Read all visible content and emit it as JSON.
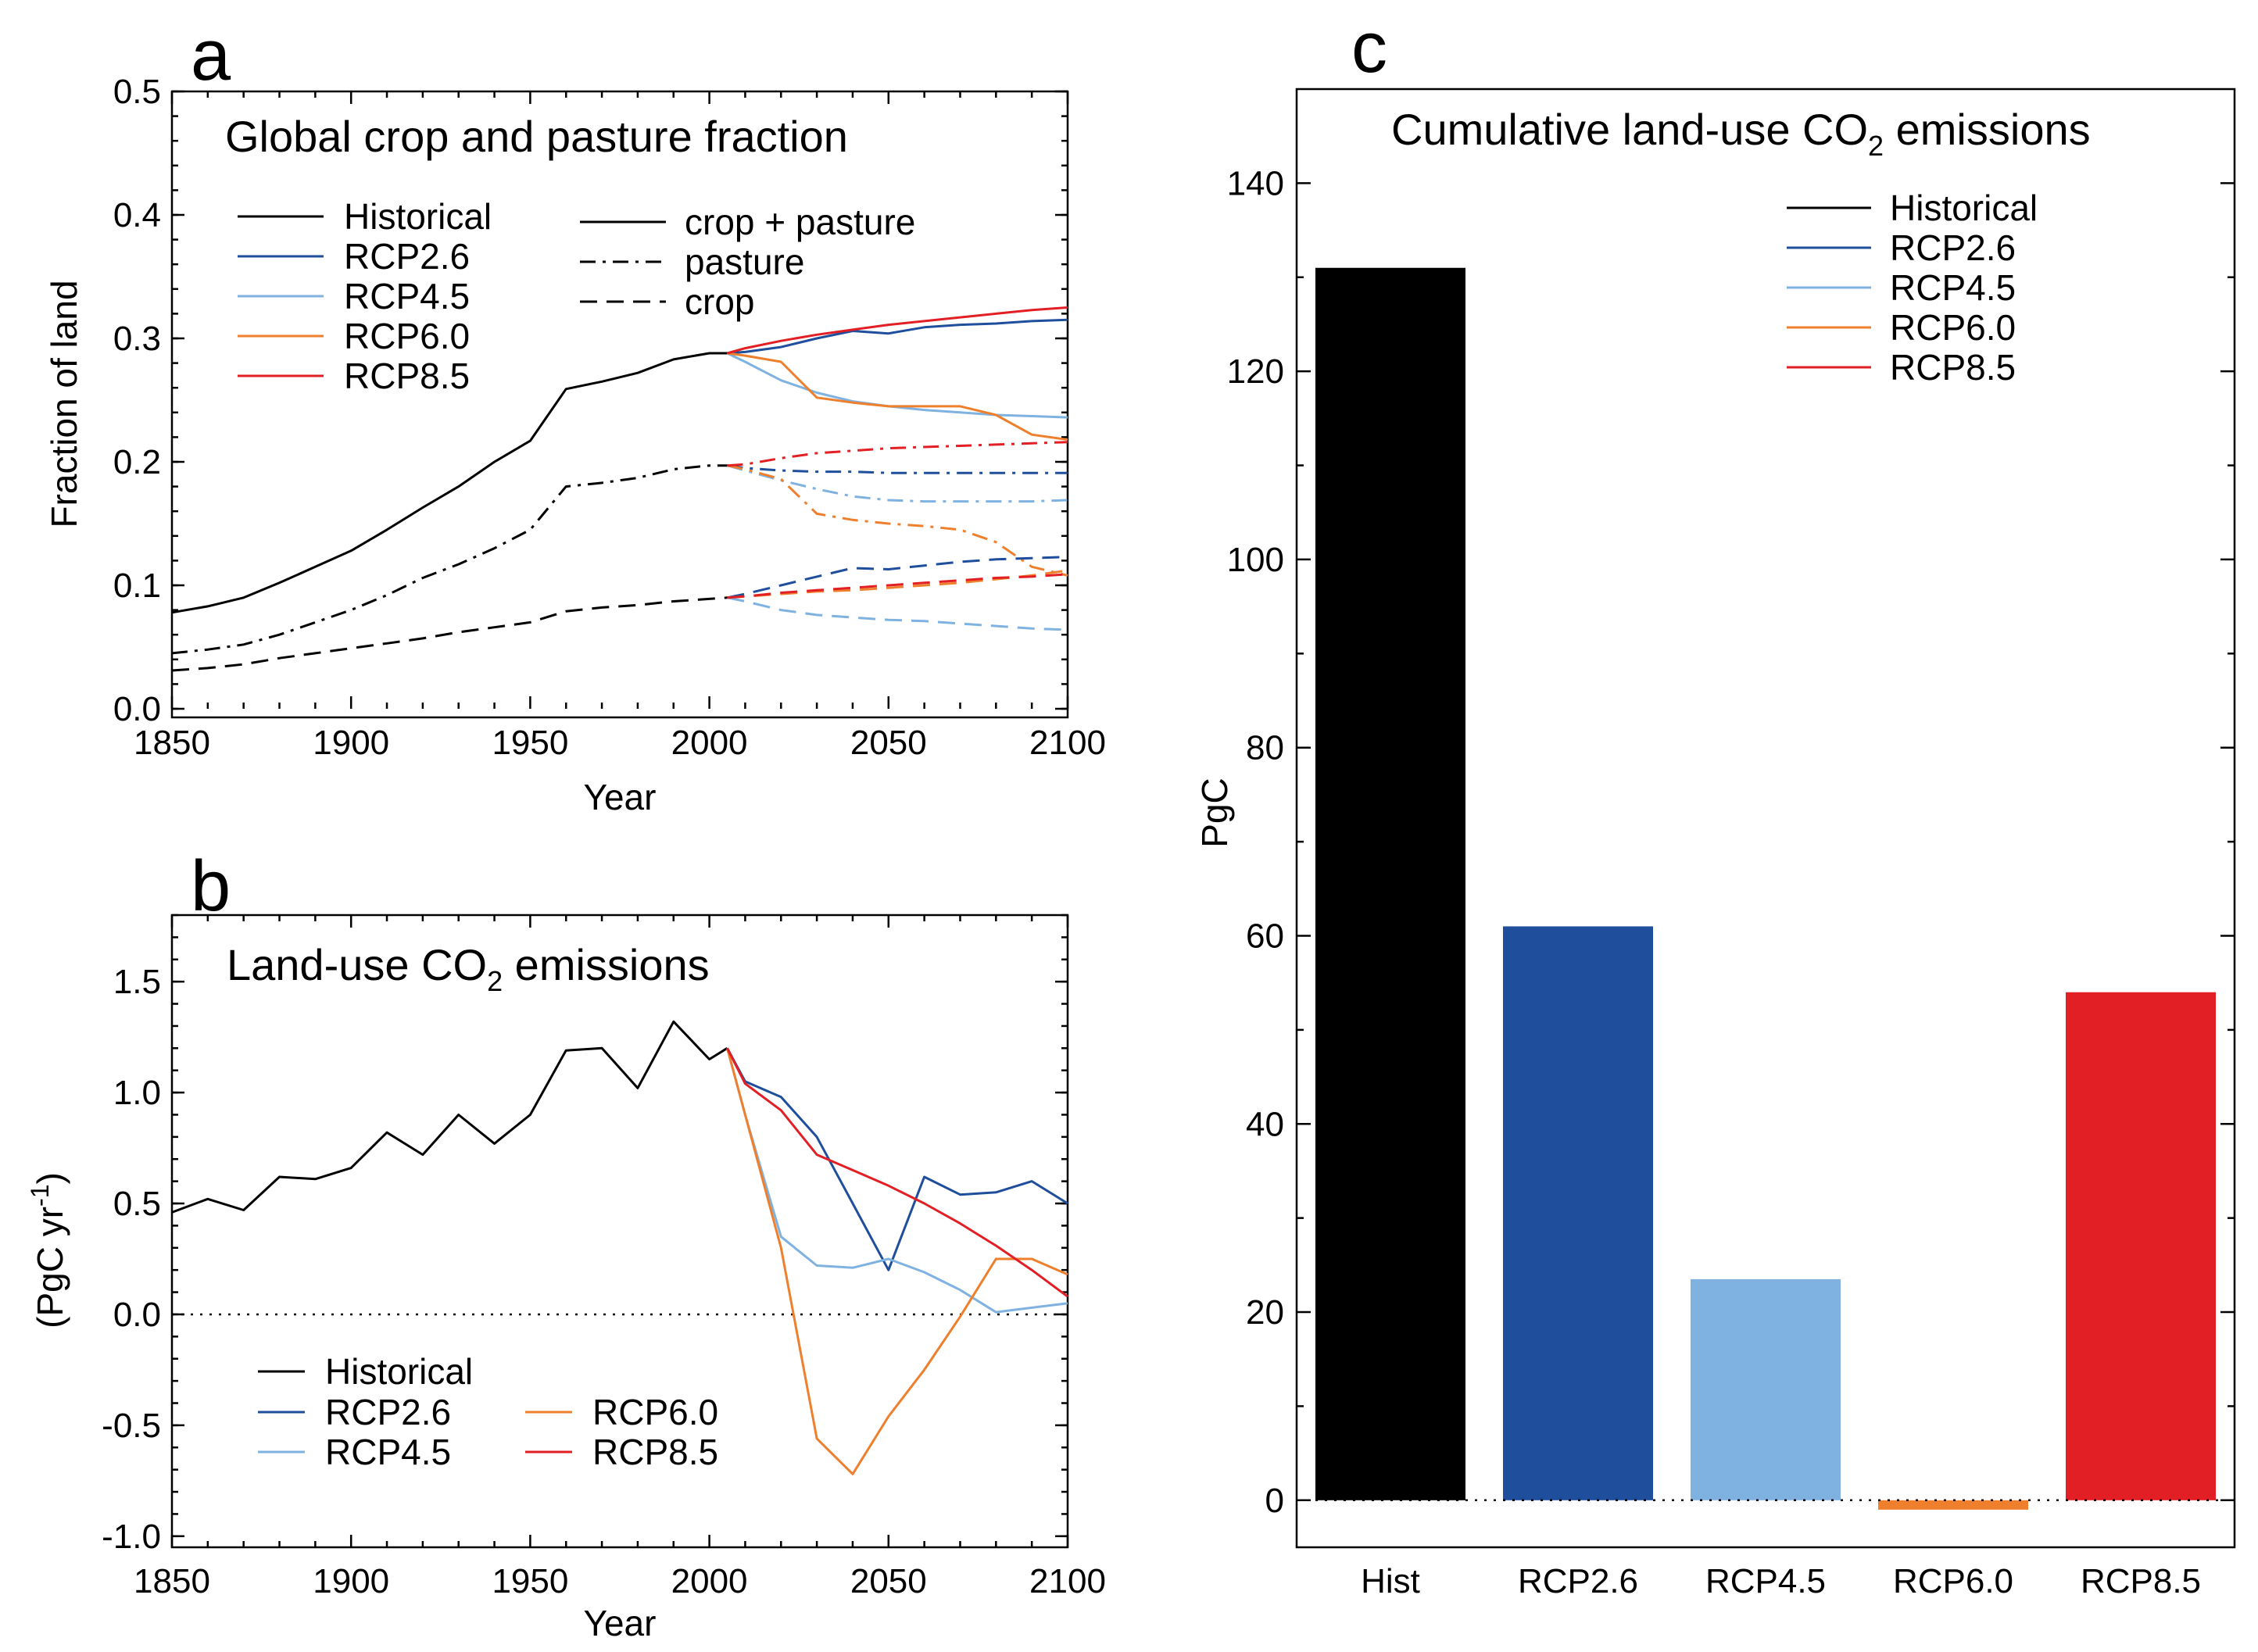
{
  "colors": {
    "Historical": "#000000",
    "RCP2.6": "#1f4e9c",
    "RCP4.5": "#7fb2e0",
    "RCP6.0": "#ee7f2d",
    "RCP8.5": "#e21f24"
  },
  "chart_data": [
    {
      "panel": "a",
      "type": "line",
      "title": "Global crop and pasture fraction",
      "xlabel": "Year",
      "ylabel": "Fraction of land",
      "xlim": [
        1850,
        2100
      ],
      "ylim": [
        0,
        0.5
      ],
      "xticks": [
        1850,
        1900,
        1950,
        2000,
        2050,
        2100
      ],
      "yticks": [
        0.0,
        0.1,
        0.2,
        0.3,
        0.4,
        0.5
      ],
      "ytick_labels": [
        "0.0",
        "0.1",
        "0.2",
        "0.3",
        "0.4",
        "0.5"
      ],
      "legend_scenarios": [
        "Historical",
        "RCP2.6",
        "RCP4.5",
        "RCP6.0",
        "RCP8.5"
      ],
      "legend_styles": [
        {
          "label": "crop + pasture",
          "style": "solid"
        },
        {
          "label": "pasture",
          "style": "dashdot"
        },
        {
          "label": "crop",
          "style": "dashed"
        }
      ],
      "series": [
        {
          "name": "Historical",
          "variable": "crop + pasture",
          "style": "solid",
          "x": [
            1850,
            1860,
            1870,
            1880,
            1890,
            1900,
            1910,
            1920,
            1930,
            1940,
            1950,
            1960,
            1970,
            1980,
            1990,
            2000,
            2005
          ],
          "y": [
            0.078,
            0.083,
            0.09,
            0.102,
            0.115,
            0.128,
            0.145,
            0.163,
            0.18,
            0.2,
            0.217,
            0.259,
            0.265,
            0.272,
            0.283,
            0.288,
            0.288
          ]
        },
        {
          "name": "RCP2.6",
          "variable": "crop + pasture",
          "style": "solid",
          "x": [
            2005,
            2010,
            2020,
            2030,
            2040,
            2050,
            2060,
            2070,
            2080,
            2090,
            2100
          ],
          "y": [
            0.288,
            0.289,
            0.293,
            0.3,
            0.306,
            0.304,
            0.309,
            0.311,
            0.312,
            0.314,
            0.315
          ]
        },
        {
          "name": "RCP4.5",
          "variable": "crop + pasture",
          "style": "solid",
          "x": [
            2005,
            2010,
            2020,
            2030,
            2040,
            2050,
            2060,
            2070,
            2080,
            2090,
            2100
          ],
          "y": [
            0.288,
            0.281,
            0.266,
            0.256,
            0.249,
            0.245,
            0.242,
            0.24,
            0.238,
            0.237,
            0.236
          ]
        },
        {
          "name": "RCP6.0",
          "variable": "crop + pasture",
          "style": "solid",
          "x": [
            2005,
            2010,
            2020,
            2030,
            2040,
            2050,
            2060,
            2070,
            2080,
            2090,
            2100
          ],
          "y": [
            0.288,
            0.286,
            0.281,
            0.252,
            0.248,
            0.245,
            0.245,
            0.245,
            0.238,
            0.222,
            0.218
          ]
        },
        {
          "name": "RCP8.5",
          "variable": "crop + pasture",
          "style": "solid",
          "x": [
            2005,
            2010,
            2020,
            2030,
            2040,
            2050,
            2060,
            2070,
            2080,
            2090,
            2100
          ],
          "y": [
            0.288,
            0.292,
            0.298,
            0.303,
            0.307,
            0.311,
            0.314,
            0.317,
            0.32,
            0.323,
            0.325
          ]
        },
        {
          "name": "Historical",
          "variable": "pasture",
          "style": "dashdot",
          "x": [
            1850,
            1860,
            1870,
            1880,
            1890,
            1900,
            1910,
            1920,
            1930,
            1940,
            1950,
            1960,
            1970,
            1980,
            1990,
            2000,
            2005
          ],
          "y": [
            0.045,
            0.048,
            0.052,
            0.06,
            0.07,
            0.08,
            0.092,
            0.106,
            0.117,
            0.13,
            0.145,
            0.18,
            0.183,
            0.187,
            0.194,
            0.197,
            0.197
          ]
        },
        {
          "name": "RCP2.6",
          "variable": "pasture",
          "style": "dashdot",
          "x": [
            2005,
            2010,
            2020,
            2030,
            2040,
            2050,
            2060,
            2070,
            2080,
            2090,
            2100
          ],
          "y": [
            0.197,
            0.195,
            0.193,
            0.192,
            0.192,
            0.191,
            0.191,
            0.191,
            0.191,
            0.191,
            0.191
          ]
        },
        {
          "name": "RCP4.5",
          "variable": "pasture",
          "style": "dashdot",
          "x": [
            2005,
            2010,
            2020,
            2030,
            2040,
            2050,
            2060,
            2070,
            2080,
            2090,
            2100
          ],
          "y": [
            0.197,
            0.193,
            0.185,
            0.178,
            0.172,
            0.169,
            0.168,
            0.168,
            0.168,
            0.168,
            0.169
          ]
        },
        {
          "name": "RCP6.0",
          "variable": "pasture",
          "style": "dashdot",
          "x": [
            2005,
            2010,
            2020,
            2030,
            2040,
            2050,
            2060,
            2070,
            2080,
            2090,
            2100
          ],
          "y": [
            0.197,
            0.194,
            0.186,
            0.158,
            0.153,
            0.15,
            0.148,
            0.145,
            0.135,
            0.115,
            0.108
          ]
        },
        {
          "name": "RCP8.5",
          "variable": "pasture",
          "style": "dashdot",
          "x": [
            2005,
            2010,
            2020,
            2030,
            2040,
            2050,
            2060,
            2070,
            2080,
            2090,
            2100
          ],
          "y": [
            0.197,
            0.198,
            0.203,
            0.207,
            0.209,
            0.211,
            0.212,
            0.213,
            0.214,
            0.215,
            0.216
          ]
        },
        {
          "name": "Historical",
          "variable": "crop",
          "style": "dashed",
          "x": [
            1850,
            1860,
            1870,
            1880,
            1890,
            1900,
            1910,
            1920,
            1930,
            1940,
            1950,
            1960,
            1970,
            1980,
            1990,
            2000,
            2005
          ],
          "y": [
            0.031,
            0.033,
            0.036,
            0.041,
            0.045,
            0.049,
            0.053,
            0.057,
            0.062,
            0.066,
            0.07,
            0.079,
            0.082,
            0.084,
            0.087,
            0.089,
            0.09
          ]
        },
        {
          "name": "RCP2.6",
          "variable": "crop",
          "style": "dashed",
          "x": [
            2005,
            2010,
            2020,
            2030,
            2040,
            2050,
            2060,
            2070,
            2080,
            2090,
            2100
          ],
          "y": [
            0.09,
            0.093,
            0.1,
            0.107,
            0.114,
            0.113,
            0.116,
            0.119,
            0.121,
            0.122,
            0.123
          ]
        },
        {
          "name": "RCP4.5",
          "variable": "crop",
          "style": "dashed",
          "x": [
            2005,
            2010,
            2020,
            2030,
            2040,
            2050,
            2060,
            2070,
            2080,
            2090,
            2100
          ],
          "y": [
            0.09,
            0.087,
            0.08,
            0.076,
            0.074,
            0.072,
            0.071,
            0.069,
            0.067,
            0.065,
            0.064
          ]
        },
        {
          "name": "RCP6.0",
          "variable": "crop",
          "style": "dashed",
          "x": [
            2005,
            2010,
            2020,
            2030,
            2040,
            2050,
            2060,
            2070,
            2080,
            2090,
            2100
          ],
          "y": [
            0.09,
            0.091,
            0.093,
            0.095,
            0.096,
            0.098,
            0.1,
            0.102,
            0.105,
            0.108,
            0.112
          ]
        },
        {
          "name": "RCP8.5",
          "variable": "crop",
          "style": "dashed",
          "x": [
            2005,
            2010,
            2020,
            2030,
            2040,
            2050,
            2060,
            2070,
            2080,
            2090,
            2100
          ],
          "y": [
            0.09,
            0.091,
            0.094,
            0.096,
            0.098,
            0.1,
            0.102,
            0.104,
            0.106,
            0.107,
            0.109
          ]
        }
      ]
    },
    {
      "panel": "b",
      "type": "line",
      "title": "Land-use CO",
      "title_subscript": "2",
      "title_suffix": " emissions",
      "xlabel": "Year",
      "ylabel": "(PgC yr",
      "ylabel_superscript": "-1",
      "ylabel_suffix": ")",
      "xlim": [
        1850,
        2100
      ],
      "ylim": [
        -1.05,
        1.8
      ],
      "xticks": [
        1850,
        1900,
        1950,
        2000,
        2050,
        2100
      ],
      "yticks": [
        -1.0,
        -0.5,
        0.0,
        0.5,
        1.0,
        1.5
      ],
      "ytick_labels": [
        "-1.0",
        "-0.5",
        "0.0",
        "0.5",
        "1.0",
        "1.5"
      ],
      "zero_line": true,
      "legend": [
        "Historical",
        "RCP2.6",
        "RCP4.5",
        "RCP6.0",
        "RCP8.5"
      ],
      "series": [
        {
          "name": "Historical",
          "x": [
            1850,
            1860,
            1870,
            1880,
            1890,
            1900,
            1910,
            1920,
            1930,
            1940,
            1950,
            1960,
            1970,
            1980,
            1990,
            2000,
            2005
          ],
          "y": [
            0.46,
            0.52,
            0.47,
            0.62,
            0.61,
            0.66,
            0.82,
            0.72,
            0.9,
            0.77,
            0.9,
            1.19,
            1.2,
            1.02,
            1.32,
            1.15,
            1.2
          ]
        },
        {
          "name": "RCP2.6",
          "x": [
            2005,
            2010,
            2020,
            2030,
            2040,
            2050,
            2060,
            2070,
            2080,
            2090,
            2100
          ],
          "y": [
            1.2,
            1.05,
            0.98,
            0.8,
            0.5,
            0.2,
            0.62,
            0.54,
            0.55,
            0.6,
            0.5
          ]
        },
        {
          "name": "RCP4.5",
          "x": [
            2005,
            2010,
            2020,
            2030,
            2040,
            2050,
            2060,
            2070,
            2080,
            2090,
            2100
          ],
          "y": [
            1.2,
            0.9,
            0.35,
            0.22,
            0.21,
            0.25,
            0.19,
            0.11,
            0.01,
            0.03,
            0.05
          ]
        },
        {
          "name": "RCP6.0",
          "x": [
            2005,
            2010,
            2020,
            2030,
            2040,
            2050,
            2060,
            2070,
            2080,
            2090,
            2100
          ],
          "y": [
            1.2,
            0.9,
            0.3,
            -0.56,
            -0.72,
            -0.46,
            -0.25,
            -0.01,
            0.25,
            0.25,
            0.18
          ]
        },
        {
          "name": "RCP8.5",
          "x": [
            2005,
            2010,
            2020,
            2030,
            2040,
            2050,
            2060,
            2070,
            2080,
            2090,
            2100
          ],
          "y": [
            1.2,
            1.04,
            0.92,
            0.72,
            0.65,
            0.58,
            0.5,
            0.41,
            0.31,
            0.2,
            0.08
          ]
        }
      ]
    },
    {
      "panel": "c",
      "type": "bar",
      "title": "Cumulative land-use CO",
      "title_subscript": "2",
      "title_suffix": " emissions",
      "ylabel": "PgC",
      "ylim": [
        -5,
        150
      ],
      "yticks": [
        0,
        20,
        40,
        60,
        80,
        100,
        120,
        140
      ],
      "categories": [
        "Hist",
        "RCP2.6",
        "RCP4.5",
        "RCP6.0",
        "RCP8.5"
      ],
      "series_keys": [
        "Historical",
        "RCP2.6",
        "RCP4.5",
        "RCP6.0",
        "RCP8.5"
      ],
      "values": [
        131,
        61,
        23.5,
        -1,
        54
      ],
      "zero_line": true,
      "legend": [
        "Historical",
        "RCP2.6",
        "RCP4.5",
        "RCP6.0",
        "RCP8.5"
      ]
    }
  ]
}
